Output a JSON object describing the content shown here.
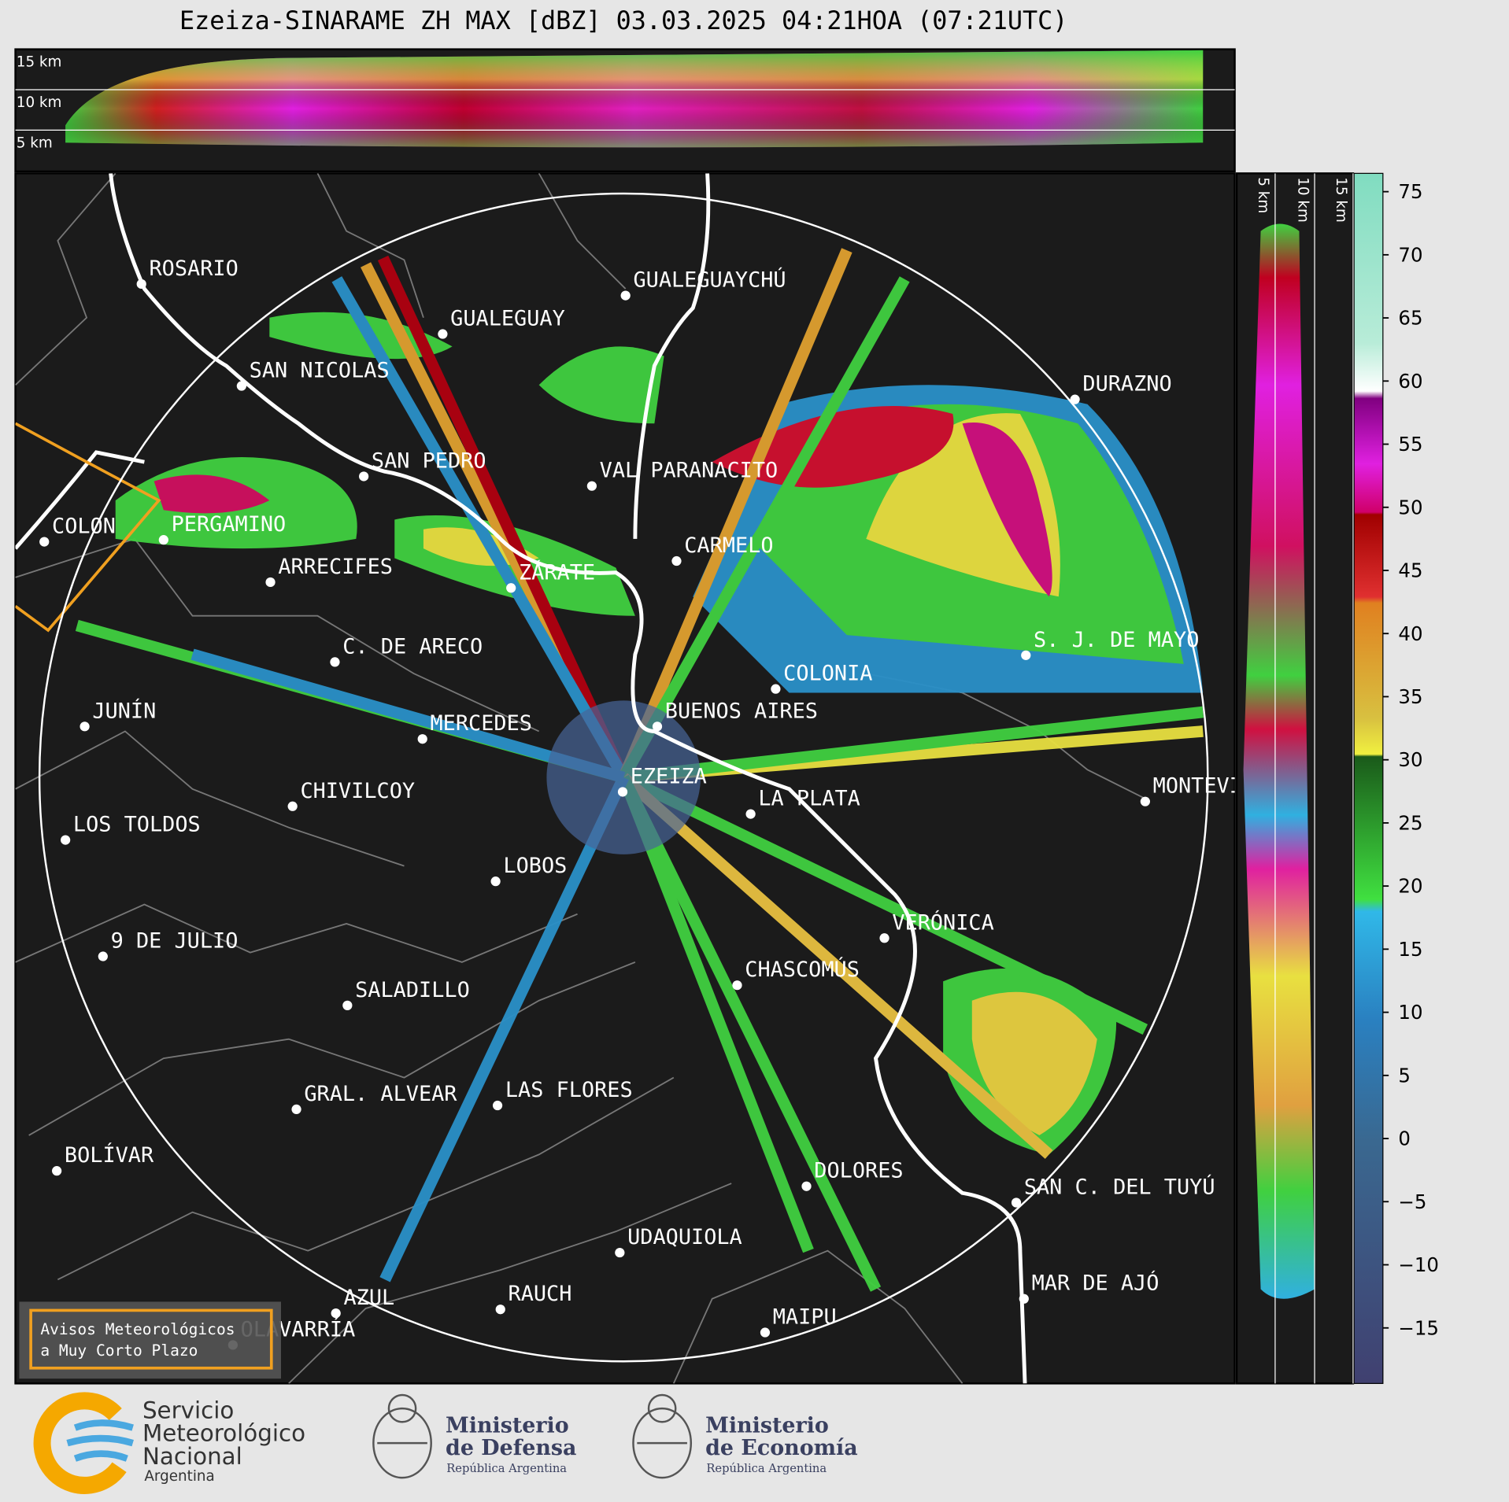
{
  "title": "Ezeiza-SINARAME ZH MAX [dBZ] 03.03.2025 04:21HOA (07:21UTC)",
  "top_panel": {
    "height_labels": [
      "15 km",
      "10 km",
      "5 km"
    ]
  },
  "side_panel": {
    "height_labels": [
      "5 km",
      "10 km",
      "15 km"
    ]
  },
  "colorbar": {
    "lim": [
      -19.4,
      76.45
    ],
    "ticks": [
      75,
      70,
      65,
      60,
      55,
      50,
      45,
      40,
      35,
      30,
      25,
      20,
      15,
      10,
      5,
      0,
      {
        "value": -5,
        "label": "−5"
      },
      {
        "value": -10,
        "label": "−10"
      },
      {
        "value": -15,
        "label": "−15"
      }
    ]
  },
  "cities": [
    {
      "name": "ROSARIO"
    },
    {
      "name": "GUALEGUAYCHÚ"
    },
    {
      "name": "GUALEGUAY"
    },
    {
      "name": "SAN NICOLAS"
    },
    {
      "name": "DURAZNO"
    },
    {
      "name": "SAN PEDRO"
    },
    {
      "name": "VAL PARANACITO"
    },
    {
      "name": "COLON"
    },
    {
      "name": "PERGAMINO"
    },
    {
      "name": "CARMELO"
    },
    {
      "name": "ARRECIFES"
    },
    {
      "name": "ZÁRATE"
    },
    {
      "name": "C. DE ARECO"
    },
    {
      "name": "S. J. DE MAYO"
    },
    {
      "name": "COLONIA"
    },
    {
      "name": "BUENOS AIRES"
    },
    {
      "name": "JUNÍN"
    },
    {
      "name": "MERCEDES"
    },
    {
      "name": "EZEIZA"
    },
    {
      "name": "MONTEVIDEO"
    },
    {
      "name": "CHIVILCOY"
    },
    {
      "name": "LA PLATA"
    },
    {
      "name": "LOS TOLDOS"
    },
    {
      "name": "LOBOS"
    },
    {
      "name": "VERÓNICA"
    },
    {
      "name": "9 DE JULIO"
    },
    {
      "name": "CHASCOMÚS"
    },
    {
      "name": "SALADILLO"
    },
    {
      "name": "GRAL. ALVEAR"
    },
    {
      "name": "LAS FLORES"
    },
    {
      "name": "BOLÍVAR"
    },
    {
      "name": "DOLORES"
    },
    {
      "name": "SAN C. DEL TUYÚ"
    },
    {
      "name": "UDAQUIOLA"
    },
    {
      "name": "MAR DE AJÓ"
    },
    {
      "name": "AZUL"
    },
    {
      "name": "RAUCH"
    },
    {
      "name": "OLAVARRÍA"
    },
    {
      "name": "MAIPU"
    }
  ],
  "notice": {
    "lines": [
      "Avisos Meteorológicos",
      "a Muy Corto Plazo"
    ]
  },
  "footer": {
    "smn": {
      "lines": [
        "Servicio",
        "Meteorológico",
        "Nacional"
      ],
      "country": "Argentina"
    },
    "defensa": {
      "lines": [
        "Ministerio",
        "de Defensa"
      ],
      "sub": "República Argentina"
    },
    "economia": {
      "lines": [
        "Ministerio",
        "de Economía"
      ],
      "sub": "República Argentina"
    }
  }
}
